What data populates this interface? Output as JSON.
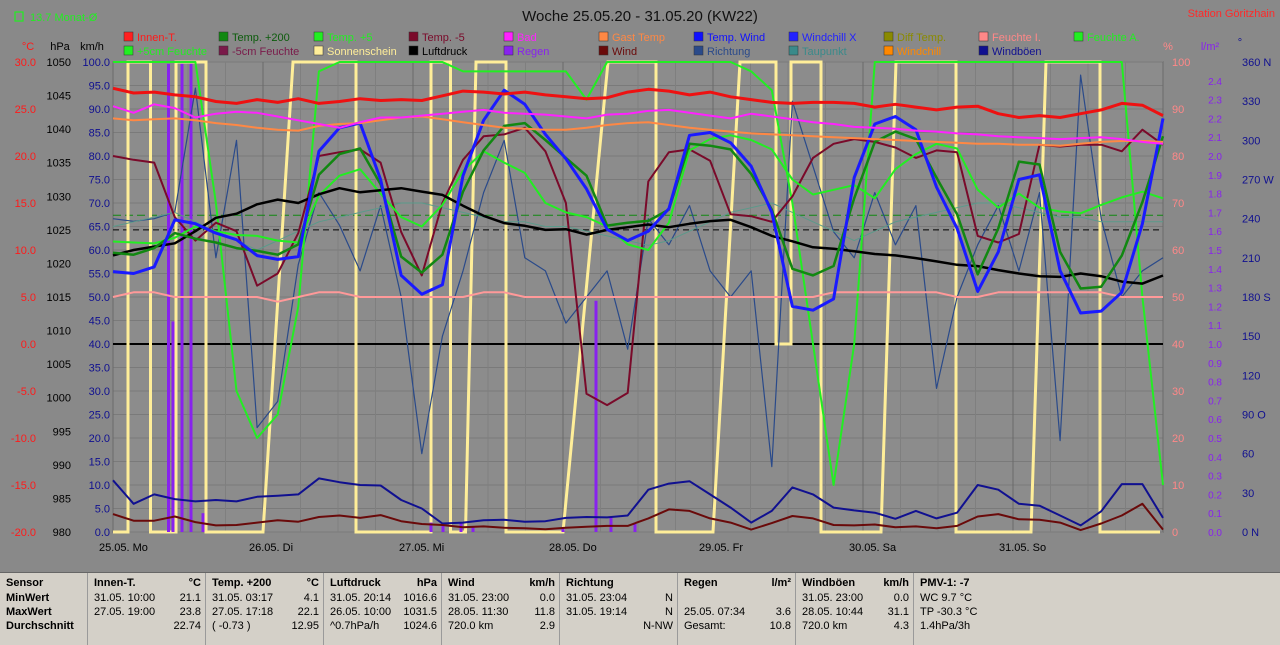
{
  "chart_data": {
    "type": "line",
    "title": "Woche 25.05.20 - 31.05.20 (KW22)",
    "station": "Station Göritzhain",
    "month_avg": "13.7 Monat-Ø",
    "axes": {
      "temp": {
        "unit": "°C",
        "range": [
          -20,
          30
        ],
        "ticks": [
          "30.0",
          "25.0",
          "20.0",
          "15.0",
          "10.0",
          "5.0",
          "0.0",
          "-5.0",
          "-10.0",
          "-15.0",
          "-20.0"
        ]
      },
      "pressure": {
        "unit": "hPa",
        "range": [
          980,
          1050
        ],
        "ticks": [
          "1050",
          "1045",
          "1040",
          "1035",
          "1030",
          "1025",
          "1020",
          "1015",
          "1010",
          "1005",
          "1000",
          "995",
          "990",
          "985",
          "980"
        ]
      },
      "wind": {
        "unit": "km/h",
        "range": [
          0,
          100
        ],
        "ticks": [
          "100.0",
          "95.0",
          "90.0",
          "85.0",
          "80.0",
          "75.0",
          "70.0",
          "65.0",
          "60.0",
          "55.0",
          "50.0",
          "45.0",
          "40.0",
          "35.0",
          "30.0",
          "25.0",
          "20.0",
          "15.0",
          "10.0",
          "5.0",
          "0.0"
        ]
      },
      "humidity": {
        "unit": "%",
        "range": [
          0,
          100
        ],
        "ticks": [
          "100",
          "90",
          "80",
          "70",
          "60",
          "50",
          "40",
          "30",
          "20",
          "10",
          "0"
        ]
      },
      "rain": {
        "unit": "l/m²",
        "range": [
          0,
          2.5
        ],
        "ticks": [
          "2.4",
          "2.3",
          "2.2",
          "2.1",
          "2.0",
          "1.9",
          "1.8",
          "1.7",
          "1.6",
          "1.5",
          "1.4",
          "1.3",
          "1.2",
          "1.1",
          "1.0",
          "0.9",
          "0.8",
          "0.7",
          "0.6",
          "0.5",
          "0.4",
          "0.3",
          "0.2",
          "0.1",
          "0.0"
        ]
      },
      "direction": {
        "unit": "°",
        "range": [
          0,
          360
        ],
        "ticks": [
          "360 N",
          "330",
          "300",
          "270 W",
          "240",
          "210",
          "180 S",
          "150",
          "120",
          "90 O",
          "60",
          "30",
          "0 N"
        ]
      }
    },
    "days": [
      "25.05. Mo",
      "26.05. Di",
      "27.05. Mi",
      "28.05. Do",
      "29.05. Fr",
      "30.05. Sa",
      "31.05. So"
    ],
    "legend": [
      {
        "name": "Innen-T.",
        "color": "#ff2020",
        "text": "#ff1a1a"
      },
      {
        "name": "Temp. +200",
        "color": "#118811",
        "text": "#0c5c0c"
      },
      {
        "name": "Temp. +5",
        "color": "#22ee22",
        "text": "#22ee22"
      },
      {
        "name": "Temp. -5",
        "color": "#7a0a2a",
        "text": "#7a0a2a"
      },
      {
        "name": "Bad",
        "color": "#ff22ff",
        "text": "#ff22ff"
      },
      {
        "name": "Gast Temp",
        "color": "#ff8844",
        "text": "#ff8844"
      },
      {
        "name": "Temp. Wind",
        "color": "#1010ff",
        "text": "#1010ff"
      },
      {
        "name": "Windchill X",
        "color": "#2222ff",
        "text": "#2222ff"
      },
      {
        "name": "Diff Temp.",
        "color": "#8a8a00",
        "text": "#8a8a00"
      },
      {
        "name": "Feuchte I.",
        "color": "#ff8888",
        "text": "#ff8888"
      },
      {
        "name": "Feuchte A.",
        "color": "#22ee22",
        "text": "#22ee22"
      },
      {
        "name": "+5cm Feuchte",
        "color": "#22ee22",
        "text": "#22ee22"
      },
      {
        "name": "-5cm Feuchte",
        "color": "#7a1a4a",
        "text": "#7a1a4a"
      },
      {
        "name": "Sonnenschein",
        "color": "#ffee99",
        "text": "#ffee99"
      },
      {
        "name": "Luftdruck",
        "color": "#000000",
        "text": "#000000"
      },
      {
        "name": "Regen",
        "color": "#8822ee",
        "text": "#8822ee"
      },
      {
        "name": "Wind",
        "color": "#6a0a0a",
        "text": "#6a0a0a"
      },
      {
        "name": "Richtung",
        "color": "#2a4a8a",
        "text": "#2a4a8a"
      },
      {
        "name": "Taupunkt",
        "color": "#3a8a8a",
        "text": "#3a8a8a"
      },
      {
        "name": "Windchill",
        "color": "#ff8800",
        "text": "#ff8800"
      },
      {
        "name": "Windböen",
        "color": "#101090",
        "text": "#101090"
      }
    ],
    "series": {
      "innen": [
        27.2,
        26.7,
        26.8,
        26.5,
        26.3,
        25.8,
        25.6,
        26.0,
        25.7,
        26.1,
        25.6,
        25.8,
        26.1,
        25.9,
        26.0,
        25.9,
        26.4,
        26.9,
        26.8,
        26.6,
        26.8,
        26.5,
        26.3,
        26.1,
        26.2,
        26.8,
        27.1,
        26.9,
        26.5,
        26.8,
        26.3,
        26.0,
        25.7,
        25.6,
        25.7,
        25.7,
        25.6,
        25.2,
        25.5,
        25.2,
        24.9,
        25.2,
        25.3,
        24.5,
        24.1,
        24.3,
        24.1,
        24.5,
        24.9,
        25.6,
        25.4,
        24.3
      ],
      "bad": [
        25.3,
        24.6,
        25.5,
        25.1,
        24.1,
        24.5,
        24.7,
        24.6,
        24.2,
        23.8,
        23.4,
        23.0,
        23.6,
        24.1,
        24.1,
        24.3,
        24.5,
        24.7,
        24.9,
        24.6,
        24.5,
        24.4,
        24.2,
        24.0,
        24.4,
        24.5,
        24.8,
        24.9,
        24.6,
        24.3,
        24.0,
        24.5,
        24.2,
        23.9,
        23.6,
        23.4,
        23.1,
        23.0,
        22.9,
        22.7,
        22.6,
        22.4,
        22.3,
        22.1,
        22.0,
        21.9,
        21.8,
        21.9,
        22.0,
        21.8,
        21.5,
        21.3
      ],
      "gast": [
        24.0,
        23.8,
        23.9,
        24.0,
        23.8,
        23.5,
        23.3,
        23.0,
        22.8,
        22.7,
        23.2,
        23.4,
        23.5,
        23.8,
        24.1,
        24.2,
        23.9,
        23.6,
        23.3,
        23.0,
        22.9,
        22.8,
        22.8,
        23.0,
        23.3,
        23.5,
        23.6,
        23.3,
        23.0,
        22.8,
        22.6,
        22.4,
        22.3,
        22.2,
        22.1,
        22.0,
        21.9,
        21.8,
        21.7,
        21.6,
        21.5,
        21.4,
        21.3,
        21.3,
        21.2,
        21.2,
        21.1,
        21.3,
        21.5,
        21.6,
        21.6,
        21.5
      ],
      "temp200": [
        9.7,
        9.5,
        10.2,
        11.8,
        11.2,
        10.8,
        10.2,
        9.9,
        9.5,
        10.6,
        18.0,
        20.2,
        20.8,
        17.0,
        9.3,
        7.6,
        9.5,
        16.2,
        20.6,
        23.2,
        23.5,
        21.7,
        19.8,
        17.9,
        12.6,
        12.9,
        13.1,
        14.3,
        21.3,
        21.1,
        20.7,
        18.1,
        14.3,
        8.0,
        7.3,
        8.3,
        15.5,
        21.5,
        22.6,
        21.8,
        17.7,
        13.8,
        7.4,
        12.3,
        19.4,
        19.1,
        9.8,
        5.9,
        6.1,
        9.4,
        15.1,
        22.1
      ],
      "tempwind": [
        7.7,
        7.5,
        8.2,
        13.2,
        12.8,
        11.8,
        11.1,
        9.4,
        9.0,
        9.3,
        20.5,
        23.0,
        23.5,
        17.5,
        7.3,
        5.3,
        6.3,
        17.9,
        23.8,
        27.0,
        25.5,
        22.3,
        19.7,
        16.5,
        12.2,
        11.0,
        12.0,
        14.4,
        22.2,
        22.5,
        21.4,
        18.9,
        14.0,
        4.0,
        3.6,
        4.8,
        17.7,
        23.4,
        24.2,
        22.8,
        16.7,
        12.3,
        5.6,
        9.8,
        17.5,
        18.0,
        7.8,
        3.3,
        3.5,
        5.5,
        12.8,
        24.0
      ],
      "tempm5": [
        20.0,
        19.6,
        19.3,
        13.5,
        11.0,
        12.9,
        12.0,
        6.2,
        7.5,
        11.8,
        20.0,
        20.4,
        20.7,
        19.3,
        11.9,
        7.3,
        15.0,
        19.6,
        22.1,
        22.3,
        23.0,
        20.5,
        15.0,
        -5.3,
        -6.5,
        -5.2,
        17.3,
        20.4,
        20.7,
        19.5,
        13.8,
        13.6,
        13.0,
        15.7,
        19.8,
        21.3,
        21.8,
        21.5,
        20.9,
        19.8,
        20.6,
        20.4,
        11.5,
        10.8,
        11.7,
        21.2,
        21.0,
        21.2,
        21.2,
        20.5,
        22.8,
        21.2
      ],
      "temp5": [
        10.9,
        10.8,
        10.7,
        11.3,
        12.5,
        12.0,
        11.6,
        11.5,
        11.0,
        10.8,
        15.8,
        17.9,
        18.6,
        16.0,
        13.5,
        12.5,
        14.8,
        18.4,
        20.5,
        19.3,
        18.2,
        15.0,
        14.0,
        13.5,
        12.5,
        10.6,
        10.0,
        12.9,
        20.6,
        21.8,
        22.2,
        21.7,
        20.7,
        17.5,
        15.9,
        16.4,
        16.9,
        15.5,
        18.6,
        20.2,
        21.3,
        20.8,
        16.4,
        14.5,
        16.0,
        14.5,
        14.1,
        13.9,
        14.8,
        15.6,
        16.2,
        15.5
      ],
      "pressure": [
        1021.2,
        1022.0,
        1022.5,
        1023.0,
        1024.8,
        1026.8,
        1027.4,
        1028.8,
        1029.5,
        1029.0,
        1030.3,
        1031.2,
        1030.6,
        1030.9,
        1031.2,
        1030.7,
        1030.2,
        1028.6,
        1027.1,
        1026.0,
        1025.6,
        1025.0,
        1025.1,
        1024.3,
        1025.0,
        1025.4,
        1025.8,
        1025.4,
        1025.9,
        1026.3,
        1026.5,
        1025.4,
        1024.1,
        1023.3,
        1022.4,
        1022.2,
        1021.8,
        1021.4,
        1021.2,
        1020.8,
        1020.3,
        1019.8,
        1019.6,
        1019.0,
        1018.5,
        1018.1,
        1018.0,
        1018.5,
        1018.1,
        1017.3,
        1017.0,
        1018.2
      ],
      "humidity_in": [
        50,
        51,
        51,
        50,
        50,
        50,
        50,
        50,
        49,
        50,
        51,
        51,
        50,
        50,
        50,
        50,
        50,
        50,
        51,
        51,
        50,
        50,
        50,
        50,
        50,
        50,
        50,
        50,
        50,
        50,
        50,
        50,
        50,
        50,
        50,
        51,
        51,
        51,
        51,
        51,
        51,
        50,
        50,
        51,
        51,
        51,
        51,
        51,
        51,
        50,
        50,
        50
      ],
      "wind_speed": [
        3.8,
        2.4,
        2.4,
        3.3,
        2.1,
        1.4,
        1.5,
        2.0,
        2.5,
        2.2,
        3.2,
        3.5,
        3.0,
        3.6,
        2.3,
        1.7,
        1.5,
        1.0,
        1.2,
        0.9,
        0.8,
        0.6,
        0.9,
        1.1,
        1.3,
        1.3,
        2.9,
        4.8,
        4.5,
        2.9,
        2.0,
        0.5,
        1.9,
        3.4,
        2.9,
        1.5,
        1.4,
        1.6,
        1.0,
        1.2,
        0.8,
        1.3,
        3.3,
        3.8,
        2.7,
        2.6,
        2.0,
        0.4,
        1.8,
        3.5,
        6.0,
        0.5
      ],
      "gust": [
        11.0,
        6.0,
        8.0,
        7.0,
        6.5,
        6.8,
        6.5,
        7.5,
        7.7,
        8.0,
        11.4,
        10.6,
        10.0,
        9.9,
        6.8,
        5.0,
        1.8,
        2.0,
        2.5,
        2.6,
        2.2,
        2.3,
        3.0,
        3.2,
        3.1,
        3.5,
        9.0,
        10.3,
        10.8,
        8.0,
        5.2,
        2.0,
        4.5,
        9.5,
        8.0,
        5.2,
        4.6,
        4.1,
        2.8,
        4.5,
        2.9,
        4.1,
        10.0,
        9.0,
        6.0,
        5.6,
        3.5,
        1.4,
        4.4,
        10.2,
        10.2,
        3.0
      ],
      "rain": [
        0.0,
        0.0,
        0.0,
        0.0,
        0.0,
        0.0,
        0.0,
        0.0,
        0.0,
        0.0,
        0.0,
        0.0,
        0.0,
        0.0,
        0.0,
        0.0,
        0.0,
        0.0,
        0.0,
        0.0,
        0.0,
        0.0,
        0.0,
        0.0,
        0.0,
        0.0,
        0.0,
        0.0,
        0.0,
        0.0,
        0.0,
        0.0,
        0.0,
        0.0,
        0.0,
        0.0,
        0.0,
        0.0,
        0.0,
        0.0,
        0.0,
        0.0,
        0.0,
        0.0,
        0.0,
        0.0,
        0.0,
        0.0,
        0.0,
        0.0,
        0.0,
        0.0
      ],
      "rain_bars": [
        [
          25.37,
          2.49
        ],
        [
          25.4,
          1.12
        ],
        [
          25.46,
          2.49
        ],
        [
          25.52,
          2.49
        ],
        [
          25.6,
          0.1
        ],
        [
          27.12,
          0.05
        ],
        [
          27.2,
          0.05
        ],
        [
          27.32,
          0.05
        ],
        [
          27.4,
          0.03
        ],
        [
          28.0,
          0.02
        ],
        [
          28.22,
          1.23
        ],
        [
          28.32,
          0.08
        ],
        [
          28.48,
          0.05
        ]
      ],
      "sun": [
        [
          25.0,
          25.1,
          0
        ],
        [
          25.1,
          25.25,
          100
        ],
        [
          25.25,
          25.42,
          0
        ],
        [
          25.42,
          25.62,
          100
        ],
        [
          25.62,
          26.0,
          0
        ],
        [
          26.2,
          26.62,
          100
        ],
        [
          26.62,
          27.12,
          0
        ],
        [
          27.12,
          27.25,
          100
        ],
        [
          27.25,
          27.35,
          0
        ],
        [
          27.42,
          27.62,
          100
        ],
        [
          27.62,
          28.0,
          0
        ],
        [
          28.3,
          28.62,
          100
        ],
        [
          28.62,
          29.0,
          0
        ],
        [
          29.18,
          29.42,
          100
        ],
        [
          29.42,
          29.52,
          40
        ],
        [
          29.52,
          29.72,
          100
        ],
        [
          29.72,
          30.12,
          0
        ],
        [
          30.22,
          30.62,
          100
        ],
        [
          30.62,
          31.12,
          0
        ],
        [
          31.22,
          31.58,
          100
        ],
        [
          31.58,
          31.98,
          0
        ]
      ],
      "direction": [
        240,
        238,
        240,
        245,
        340,
        210,
        300,
        80,
        100,
        205,
        260,
        235,
        200,
        250,
        180,
        60,
        150,
        200,
        260,
        300,
        210,
        200,
        160,
        180,
        200,
        140,
        240,
        220,
        250,
        200,
        180,
        200,
        50,
        330,
        280,
        230,
        210,
        260,
        220,
        250,
        110,
        180,
        220,
        250,
        200,
        260,
        70,
        350,
        240,
        180,
        200,
        210
      ],
      "humidity_out": [
        100,
        100,
        100,
        100,
        100,
        70,
        30,
        20,
        25,
        48,
        98,
        100,
        100,
        100,
        100,
        100,
        100,
        98,
        98,
        98,
        98,
        98,
        98,
        92,
        100,
        100,
        100,
        100,
        100,
        100,
        100,
        98,
        94,
        70,
        40,
        10,
        40,
        100,
        100,
        100,
        100,
        100,
        100,
        100,
        100,
        100,
        100,
        100,
        100,
        100,
        50,
        10
      ],
      "dewpoint_feuchte5": [
        65,
        66,
        67,
        68,
        66,
        64,
        62,
        60,
        62,
        64,
        66,
        67,
        68,
        69,
        70,
        70,
        69,
        68,
        67,
        66,
        66,
        65,
        65,
        64,
        63,
        62,
        61,
        62,
        64,
        66,
        68,
        69,
        70,
        68,
        66,
        64,
        62,
        64,
        66,
        67,
        68,
        69,
        70,
        70,
        69,
        68,
        67,
        67,
        66,
        66,
        66,
        66
      ]
    }
  },
  "table": {
    "headers": {
      "sensor": "Sensor",
      "innen": "Innen-T.",
      "innen_u": "°C",
      "temp": "Temp. +200",
      "temp_u": "°C",
      "luft": "Luftdruck",
      "luft_u": "hPa",
      "wind": "Wind",
      "wind_u": "km/h",
      "richtung": "Richtung",
      "regen": "Regen",
      "regen_u": "l/m²",
      "boeen": "Windböen",
      "boeen_u": "km/h",
      "pmv": "PMV-1: -7"
    },
    "labels": {
      "min": "MinWert",
      "max": "MaxWert",
      "avg": "Durchschnitt"
    },
    "innen": {
      "min_t": "31.05.  10:00",
      "min_v": "21.1",
      "max_t": "27.05.  19:00",
      "max_v": "23.8",
      "avg_v": "22.74"
    },
    "temp": {
      "min_t": "31.05.  03:17",
      "min_v": "4.1",
      "max_t": "27.05.  17:18",
      "max_v": "22.1",
      "avg_t": "( -0.73 )",
      "avg_v": "12.95"
    },
    "luft": {
      "min_t": "31.05.  20:14",
      "min_v": "1016.6",
      "max_t": "26.05.  10:00",
      "max_v": "1031.5",
      "avg_t": "^0.7hPa/h",
      "avg_v": "1024.6"
    },
    "wind": {
      "min_t": "31.05.  23:00",
      "min_v": "0.0",
      "max_t": "28.05.  11:30",
      "max_v": "11.8",
      "avg_t": "720.0 km",
      "avg_v": "2.9"
    },
    "richtung": {
      "min_t": "31.05.  23:04",
      "min_v": "N",
      "max_t": "31.05.  19:14",
      "max_v": "N",
      "avg_v": "N-NW"
    },
    "regen": {
      "max_t": "25.05.  07:34",
      "max_v": "3.6",
      "avg_t": "Gesamt:",
      "avg_v": "10.8"
    },
    "boeen": {
      "min_t": "31.05.  23:00",
      "min_v": "0.0",
      "max_t": "28.05.  10:44",
      "max_v": "31.1",
      "avg_t": "720.0 km",
      "avg_v": "4.3"
    },
    "pmv": {
      "l1": "WC 9.7 °C",
      "l2": "TP -30.3 °C",
      "l3": "1.4hPa/3h"
    }
  }
}
